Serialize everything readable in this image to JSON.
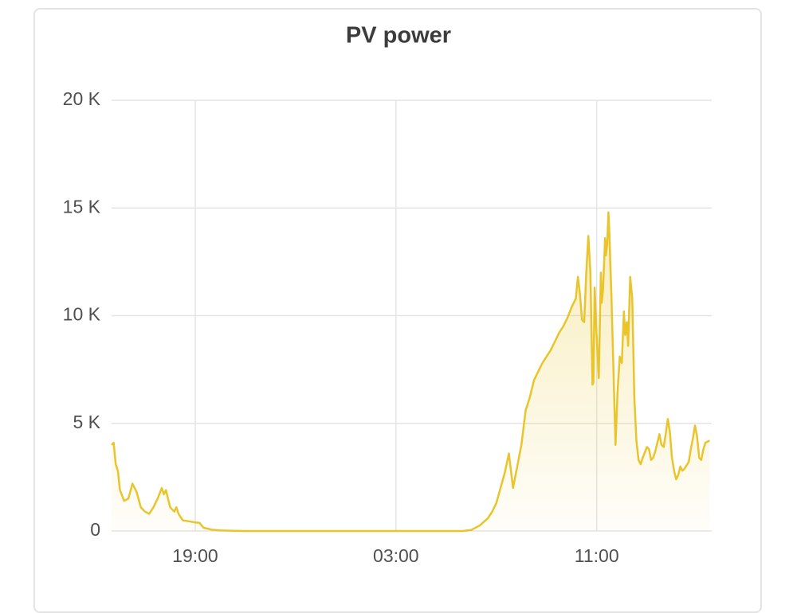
{
  "chart_data": {
    "type": "line",
    "title": "PV power",
    "x": [
      "15:40",
      "15:45",
      "15:50",
      "15:55",
      "16:00",
      "16:10",
      "16:20",
      "16:30",
      "16:40",
      "16:50",
      "17:00",
      "17:10",
      "17:20",
      "17:30",
      "17:40",
      "17:45",
      "17:50",
      "18:00",
      "18:10",
      "18:15",
      "18:20",
      "18:30",
      "18:45",
      "19:00",
      "19:10",
      "19:20",
      "19:40",
      "20:00",
      "20:30",
      "21:00",
      "23:00",
      "01:00",
      "03:00",
      "05:00",
      "05:40",
      "06:00",
      "06:20",
      "06:40",
      "06:50",
      "07:00",
      "07:10",
      "07:20",
      "07:30",
      "07:40",
      "07:50",
      "08:00",
      "08:10",
      "08:20",
      "08:30",
      "08:40",
      "08:50",
      "09:00",
      "09:10",
      "09:20",
      "09:30",
      "09:40",
      "09:50",
      "10:00",
      "10:10",
      "10:15",
      "10:20",
      "10:25",
      "10:30",
      "10:35",
      "10:40",
      "10:45",
      "10:50",
      "10:52",
      "10:55",
      "11:00",
      "11:05",
      "11:10",
      "11:12",
      "11:15",
      "11:20",
      "11:22",
      "11:25",
      "11:28",
      "11:30",
      "11:35",
      "11:40",
      "11:45",
      "11:50",
      "11:55",
      "12:00",
      "12:05",
      "12:08",
      "12:12",
      "12:15",
      "12:20",
      "12:25",
      "12:30",
      "12:35",
      "12:40",
      "12:45",
      "12:50",
      "13:00",
      "13:05",
      "13:10",
      "13:15",
      "13:20",
      "13:30",
      "13:35",
      "13:40",
      "13:45",
      "13:50",
      "13:55",
      "14:00",
      "14:05",
      "14:10",
      "14:15",
      "14:20",
      "14:25",
      "14:30",
      "14:40",
      "14:45",
      "14:50",
      "14:55",
      "15:00",
      "15:05",
      "15:10",
      "15:15",
      "15:20",
      "15:30"
    ],
    "values": [
      4000,
      4100,
      3100,
      2800,
      1900,
      1400,
      1500,
      2200,
      1800,
      1100,
      900,
      800,
      1100,
      1500,
      2000,
      1700,
      1900,
      1100,
      900,
      1100,
      800,
      500,
      450,
      400,
      380,
      150,
      60,
      30,
      10,
      0,
      0,
      0,
      0,
      0,
      0,
      50,
      250,
      600,
      900,
      1300,
      2000,
      2700,
      3600,
      2000,
      3000,
      4000,
      5600,
      6200,
      7000,
      7400,
      7800,
      8100,
      8400,
      8800,
      9200,
      9500,
      9900,
      10400,
      10800,
      11800,
      11000,
      9800,
      9700,
      12000,
      13700,
      12000,
      6800,
      6900,
      11300,
      9000,
      7100,
      12000,
      10600,
      11200,
      13600,
      12800,
      13300,
      14800,
      14000,
      11000,
      7500,
      4000,
      6500,
      8100,
      7800,
      10200,
      9100,
      9700,
      8600,
      11800,
      10800,
      6200,
      4200,
      3300,
      3100,
      3400,
      3900,
      3800,
      3300,
      3400,
      3700,
      4500,
      4000,
      3900,
      4500,
      5200,
      4600,
      3400,
      2800,
      2400,
      2600,
      3000,
      2800,
      2900,
      3200,
      3800,
      4300,
      4900,
      4400,
      3400,
      3300,
      3800,
      4100,
      4200
    ],
    "color": "#e9c52b",
    "xlim": [
      "15:40",
      "15:35"
    ],
    "xticks": [
      "19:00",
      "03:00",
      "11:00"
    ],
    "ylim": [
      0,
      20000
    ],
    "yticks": [
      {
        "value": 0,
        "label": "0"
      },
      {
        "value": 5000,
        "label": "5 K"
      },
      {
        "value": 10000,
        "label": "10 K"
      },
      {
        "value": 15000,
        "label": "15 K"
      },
      {
        "value": 20000,
        "label": "20 K"
      }
    ],
    "grid": true
  }
}
